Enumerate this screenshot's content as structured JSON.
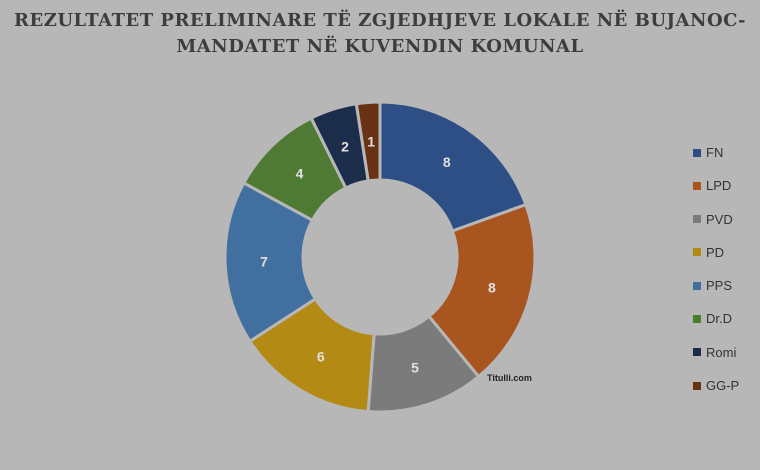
{
  "title_line1": "REZULTATET PRELIMINARE TË ZGJEDHJEVE LOKALE NË BUJANOC-",
  "title_line2": "MANDATET NË KUVENDIN KOMUNAL",
  "watermark": "Titulli.com",
  "chart_data": {
    "type": "pie",
    "donut": true,
    "title": "REZULTATET PRELIMINARE TË ZGJEDHJEVE LOKALE NË BUJANOC-MANDATET NË KUVENDIN KOMUNAL",
    "legend_position": "right",
    "categories": [
      "FN",
      "LPD",
      "PVD",
      "PD",
      "PPS",
      "Dr.D",
      "Romi",
      "GG-P"
    ],
    "values": [
      8,
      8,
      5,
      6,
      7,
      4,
      2,
      1
    ],
    "data_labels": [
      "8",
      "8",
      "5",
      "6",
      "7",
      "4",
      "2",
      "1"
    ],
    "colors": [
      "#2e4f86",
      "#a95520",
      "#7b7b7b",
      "#b38a14",
      "#416f9f",
      "#4e7a34",
      "#1b2d4b",
      "#6a3214"
    ]
  }
}
